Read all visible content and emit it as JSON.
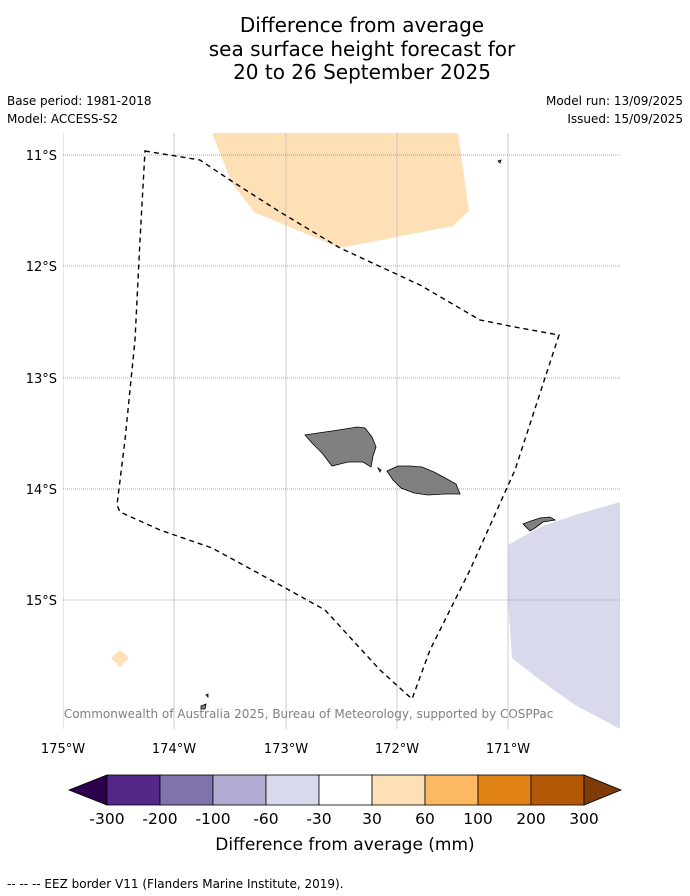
{
  "title": {
    "line1": "Difference from average",
    "line2": "sea surface height forecast for",
    "line3": "20 to 26 September 2025"
  },
  "meta": {
    "base_period": "Base period: 1981-2018",
    "model": "Model: ACCESS-S2",
    "model_run": "Model run: 13/09/2025",
    "issued": "Issued: 15/09/2025"
  },
  "map": {
    "lat_labels": [
      "11°S",
      "12°S",
      "13°S",
      "14°S",
      "15°S"
    ],
    "lon_labels": [
      "175°W",
      "174°W",
      "173°W",
      "172°W",
      "171°W"
    ],
    "copyright": "© Commonwealth of Australia 2025, Bureau of Meteorology, supported by COSPPac",
    "colors": {
      "land": "#808080",
      "positive_anomaly": "#fee0b6",
      "negative_anomaly": "#d8daeb",
      "eez_line": "#000000"
    }
  },
  "colorbar": {
    "tick_labels": [
      "-300",
      "-200",
      "-100",
      "-60",
      "-30",
      "30",
      "60",
      "100",
      "200",
      "300"
    ],
    "colors": [
      "#2d004b",
      "#542788",
      "#8073ac",
      "#b2abd2",
      "#d8daeb",
      "#ffffff",
      "#fee0b6",
      "#fdb863",
      "#e08214",
      "#b35806",
      "#7f3b08"
    ],
    "label": "Difference from average (mm)"
  },
  "footer": {
    "legend": "--  --  -- EEZ border V11 (Flanders Marine Institute, 2019)."
  }
}
